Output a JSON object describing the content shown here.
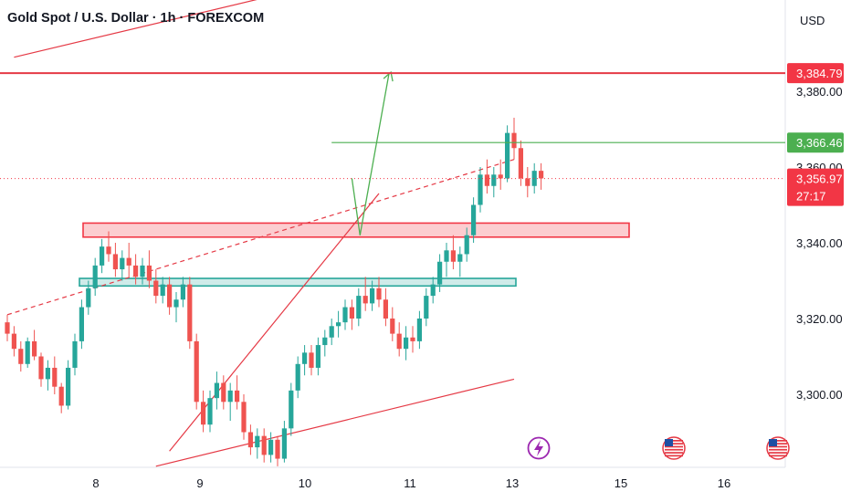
{
  "header": {
    "title": "Gold Spot / U.S. Dollar · 1h · FOREXCOM",
    "currency": "USD"
  },
  "colors": {
    "up": "#26a69a",
    "down": "#ef5350",
    "resistance_line": "#e53945",
    "target_badge": "#4caf50",
    "price_badge": "#f23645",
    "event_purple": "#9c27b0"
  },
  "icons": {
    "event_flash": "lightning-icon",
    "event_us": "us-flag-icon"
  },
  "chart_data": {
    "type": "candlestick",
    "x_tick_labels": [
      "8",
      "9",
      "10",
      "11",
      "13",
      "15",
      "16"
    ],
    "y_tick_labels": [
      "3,380.00",
      "3,360.00",
      "3,340.00",
      "3,320.00",
      "3,300.00"
    ],
    "y_ticks": [
      3380,
      3360,
      3340,
      3320,
      3300
    ],
    "ylim": [
      3280,
      3402
    ],
    "price_labels": {
      "resistance": "3,384.79",
      "target": "3,366.46",
      "last": "3,356.97",
      "countdown": "27:17"
    },
    "levels": {
      "resistance": 3384.79,
      "target": 3366.46,
      "last": 3356.97
    },
    "zones": [
      {
        "color": "red",
        "low": 3341.5,
        "high": 3345.2
      },
      {
        "color": "green",
        "low": 3328.6,
        "high": 3330.6
      }
    ],
    "candles": [
      [
        3319,
        3321,
        3314,
        3316
      ],
      [
        3316,
        3318,
        3310,
        3312
      ],
      [
        3312,
        3314,
        3306,
        3308
      ],
      [
        3308,
        3315,
        3307,
        3314
      ],
      [
        3314,
        3317,
        3309,
        3310
      ],
      [
        3310,
        3311,
        3302,
        3304
      ],
      [
        3304,
        3309,
        3301,
        3307
      ],
      [
        3307,
        3310,
        3300,
        3302
      ],
      [
        3302,
        3303,
        3295,
        3297
      ],
      [
        3297,
        3309,
        3296,
        3307
      ],
      [
        3307,
        3316,
        3305,
        3314
      ],
      [
        3314,
        3325,
        3312,
        3323
      ],
      [
        3323,
        3330,
        3321,
        3328
      ],
      [
        3328,
        3336,
        3326,
        3334
      ],
      [
        3334,
        3341,
        3332,
        3339
      ],
      [
        3339,
        3343,
        3335,
        3337
      ],
      [
        3337,
        3340,
        3331,
        3333
      ],
      [
        3333,
        3338,
        3330,
        3336
      ],
      [
        3336,
        3340,
        3331,
        3334
      ],
      [
        3334,
        3337,
        3329,
        3331
      ],
      [
        3331,
        3336,
        3329,
        3334
      ],
      [
        3334,
        3338,
        3328,
        3330
      ],
      [
        3330,
        3333,
        3324,
        3326
      ],
      [
        3326,
        3331,
        3324,
        3329
      ],
      [
        3329,
        3331,
        3321,
        3323
      ],
      [
        3323,
        3327,
        3319,
        3325
      ],
      [
        3325,
        3331,
        3323,
        3329
      ],
      [
        3329,
        3331,
        3312,
        3314
      ],
      [
        3314,
        3316,
        3296,
        3298
      ],
      [
        3298,
        3301,
        3290,
        3292
      ],
      [
        3292,
        3301,
        3290,
        3299
      ],
      [
        3299,
        3306,
        3296,
        3303
      ],
      [
        3303,
        3305,
        3296,
        3298
      ],
      [
        3298,
        3303,
        3293,
        3301
      ],
      [
        3301,
        3305,
        3296,
        3298
      ],
      [
        3298,
        3300,
        3288,
        3290
      ],
      [
        3290,
        3292,
        3284,
        3286
      ],
      [
        3286,
        3291,
        3283,
        3289
      ],
      [
        3289,
        3291,
        3282,
        3284
      ],
      [
        3284,
        3290,
        3282,
        3288
      ],
      [
        3288,
        3289,
        3281,
        3283
      ],
      [
        3283,
        3293,
        3282,
        3291
      ],
      [
        3291,
        3303,
        3289,
        3301
      ],
      [
        3301,
        3310,
        3299,
        3308
      ],
      [
        3308,
        3313,
        3305,
        3311
      ],
      [
        3311,
        3313,
        3305,
        3307
      ],
      [
        3307,
        3315,
        3305,
        3313
      ],
      [
        3313,
        3317,
        3310,
        3315
      ],
      [
        3315,
        3320,
        3313,
        3318
      ],
      [
        3318,
        3322,
        3315,
        3319
      ],
      [
        3319,
        3325,
        3317,
        3323
      ],
      [
        3323,
        3325,
        3317,
        3320
      ],
      [
        3320,
        3328,
        3318,
        3326
      ],
      [
        3326,
        3331,
        3322,
        3324
      ],
      [
        3324,
        3330,
        3322,
        3328
      ],
      [
        3328,
        3331,
        3323,
        3325
      ],
      [
        3325,
        3328,
        3318,
        3320
      ],
      [
        3320,
        3323,
        3314,
        3316
      ],
      [
        3316,
        3319,
        3310,
        3312
      ],
      [
        3312,
        3318,
        3309,
        3315
      ],
      [
        3315,
        3318,
        3311,
        3314
      ],
      [
        3314,
        3322,
        3312,
        3320
      ],
      [
        3320,
        3328,
        3318,
        3326
      ],
      [
        3326,
        3331,
        3324,
        3329
      ],
      [
        3329,
        3337,
        3327,
        3335
      ],
      [
        3335,
        3340,
        3331,
        3338
      ],
      [
        3338,
        3342,
        3333,
        3335
      ],
      [
        3335,
        3339,
        3331,
        3337
      ],
      [
        3337,
        3344,
        3335,
        3342
      ],
      [
        3342,
        3352,
        3340,
        3350
      ],
      [
        3350,
        3360,
        3348,
        3358
      ],
      [
        3358,
        3362,
        3353,
        3355
      ],
      [
        3355,
        3360,
        3352,
        3358
      ],
      [
        3358,
        3362,
        3354,
        3357
      ],
      [
        3357,
        3371,
        3356,
        3369
      ],
      [
        3369,
        3373,
        3362,
        3365
      ],
      [
        3365,
        3367,
        3355,
        3357
      ],
      [
        3357,
        3360,
        3352,
        3355
      ],
      [
        3355,
        3361,
        3353,
        3359
      ],
      [
        3359,
        3361,
        3354,
        3357
      ]
    ],
    "drawings": [
      {
        "name": "upper-channel-line",
        "from": [
          1,
          3389.0
        ],
        "to": [
          60,
          3414.0
        ]
      },
      {
        "name": "lower-channel-line",
        "from": [
          22,
          3281.0
        ],
        "to": [
          75,
          3304.0
        ]
      },
      {
        "name": "dashed-trendline",
        "from": [
          0,
          3321.0
        ],
        "to": [
          75,
          3362.0
        ]
      },
      {
        "name": "ascending-support-line",
        "from": [
          24,
          3285.0
        ],
        "to": [
          55,
          3353.0
        ]
      },
      {
        "name": "forecast-down-leg",
        "from": [
          51,
          3357.0
        ],
        "to": [
          52.2,
          3342.0
        ]
      },
      {
        "name": "forecast-up-leg",
        "from": [
          52.2,
          3342.0
        ],
        "to": [
          56.5,
          3384.8
        ]
      }
    ]
  }
}
